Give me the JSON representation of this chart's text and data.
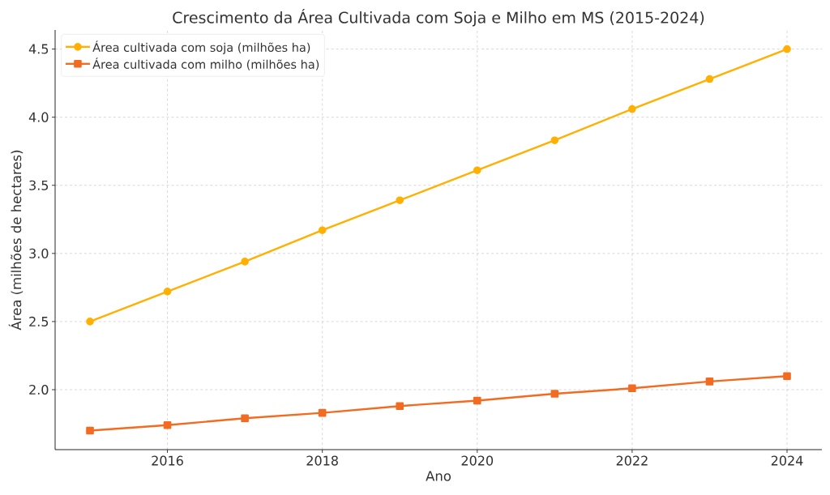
{
  "chart_data": {
    "type": "line",
    "title": "Crescimento da Área Cultivada com Soja e Milho em MS (2015-2024)",
    "xlabel": "Ano",
    "ylabel": "Área (milhões de hectares)",
    "x": [
      2015,
      2016,
      2017,
      2018,
      2019,
      2020,
      2021,
      2022,
      2023,
      2024
    ],
    "series": [
      {
        "name": "Área cultivada com soja (milhões ha)",
        "color": "#ffb000",
        "marker": "circle",
        "values": [
          2.5,
          2.72,
          2.94,
          3.17,
          3.39,
          3.61,
          3.83,
          4.06,
          4.28,
          4.5
        ]
      },
      {
        "name": "Área cultivada com milho (milhões ha)",
        "color": "#f26b21",
        "marker": "square",
        "values": [
          1.7,
          1.74,
          1.79,
          1.83,
          1.88,
          1.92,
          1.97,
          2.01,
          2.06,
          2.1
        ]
      }
    ],
    "xlim": [
      2014.55,
      2024.45
    ],
    "ylim": [
      1.56,
      4.64
    ],
    "xticks": [
      2016,
      2018,
      2020,
      2022,
      2024
    ],
    "yticks": [
      {
        "value": 2,
        "label": "2.0"
      },
      2.5,
      {
        "value": 3,
        "label": "3.0"
      },
      3.5,
      {
        "value": 4,
        "label": "4.0"
      },
      4.5
    ],
    "grid": true,
    "legend": "top left",
    "line_style": "solid"
  }
}
